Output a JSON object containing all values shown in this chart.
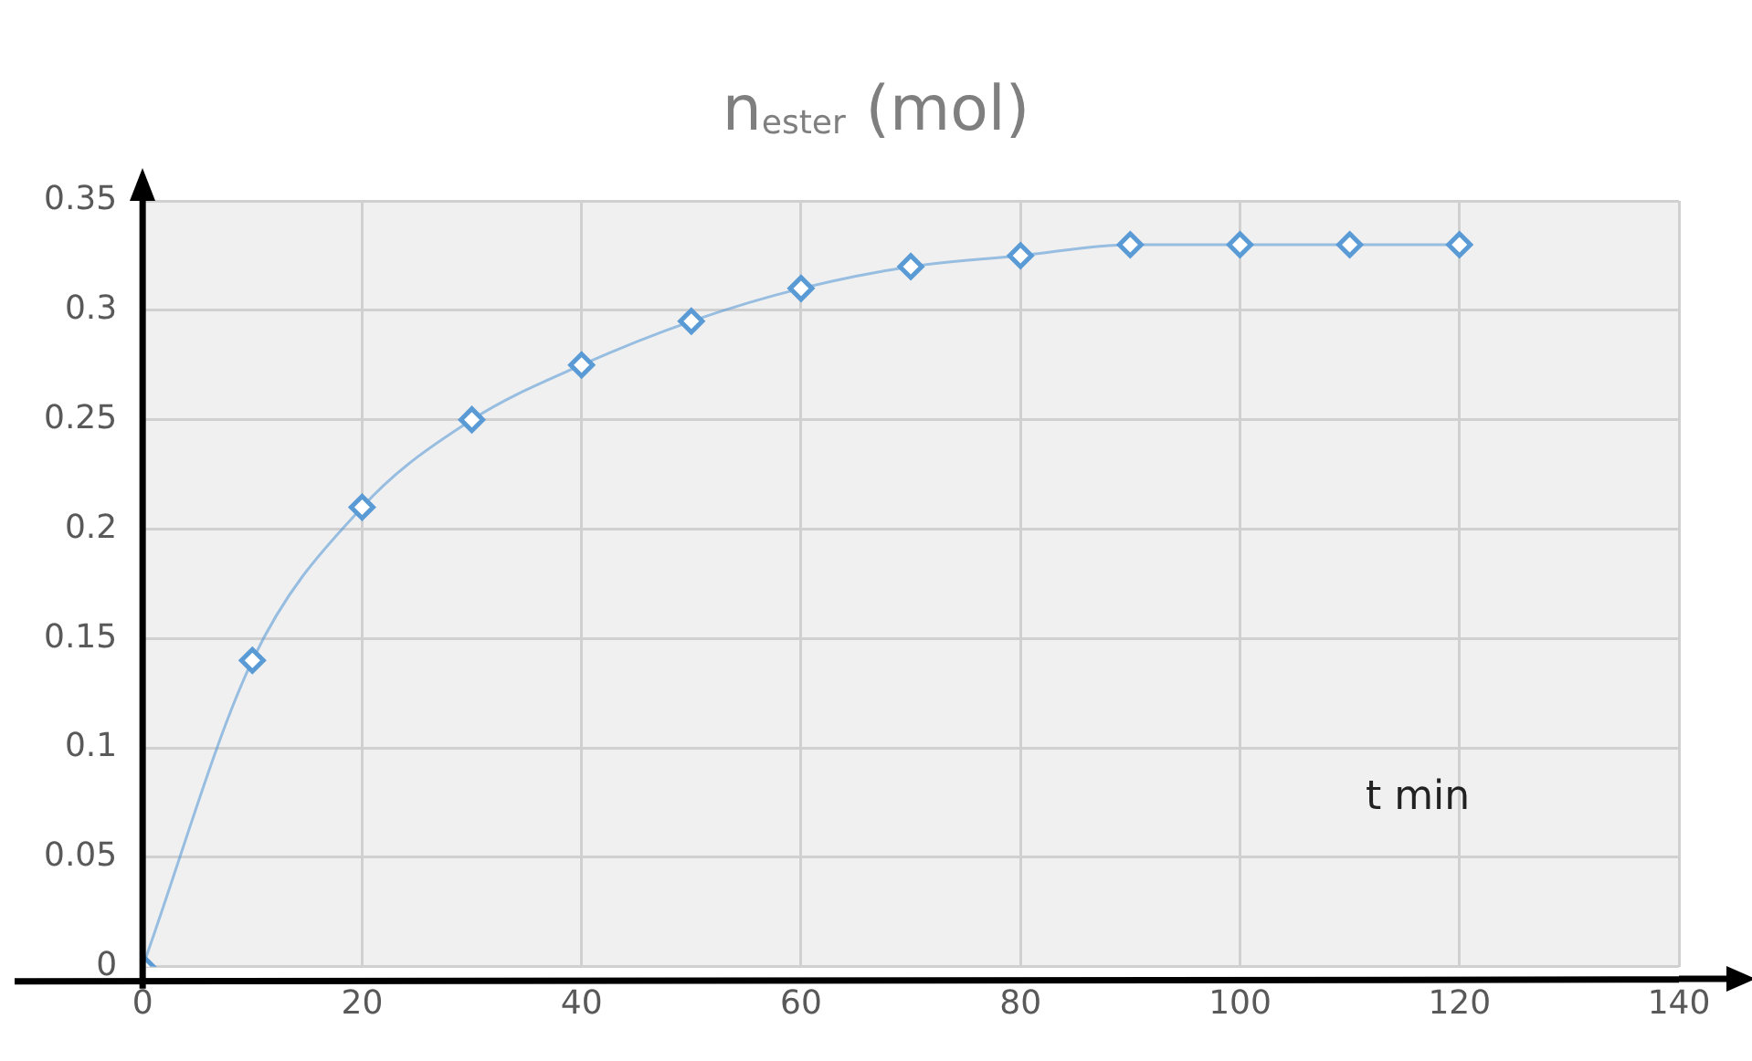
{
  "chart_data": {
    "type": "line",
    "title": "n$_{ester}$ (mol)",
    "xlabel": "t min",
    "x": [
      0,
      10,
      20,
      30,
      40,
      50,
      60,
      70,
      80,
      90,
      100,
      110,
      120
    ],
    "series": [
      {
        "color": "#5b9bd5",
        "values": [
          0,
          0.14,
          0.21,
          0.25,
          0.275,
          0.295,
          0.31,
          0.32,
          0.325,
          0.33,
          0.33,
          0.33,
          0.33
        ]
      }
    ],
    "xlim": [
      0,
      140
    ],
    "xticks": [
      0,
      20,
      40,
      60,
      80,
      100,
      120,
      140
    ],
    "ylim": [
      0,
      0.35
    ],
    "yticks": [
      0,
      0.05,
      0.1,
      0.15,
      0.2,
      0.25,
      0.3,
      0.35
    ],
    "grid": true,
    "marker": "diamond",
    "line_style": "solid",
    "legend": false
  }
}
